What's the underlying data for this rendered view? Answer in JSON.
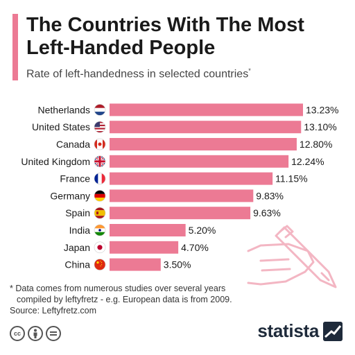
{
  "header": {
    "title": "The Countries With The Most Left-Handed People",
    "subtitle": "Rate of left-handedness in selected countries",
    "subtitle_mark": "*"
  },
  "chart_data": {
    "type": "bar",
    "orientation": "horizontal",
    "title": "The Countries With The Most Left-Handed People",
    "subtitle": "Rate of left-handedness in selected countries*",
    "categories": [
      "Netherlands",
      "United States",
      "Canada",
      "United Kingdom",
      "France",
      "Germany",
      "Spain",
      "India",
      "Japan",
      "China"
    ],
    "values": [
      13.23,
      13.1,
      12.8,
      12.24,
      11.15,
      9.83,
      9.63,
      5.2,
      4.7,
      3.5
    ],
    "labels": [
      "13.23%",
      "13.10%",
      "12.80%",
      "12.24%",
      "11.15%",
      "9.83%",
      "9.63%",
      "5.20%",
      "4.70%",
      "3.50%"
    ],
    "flags": [
      "flag-netherlands-icon",
      "flag-united-states-icon",
      "flag-canada-icon",
      "flag-united-kingdom-icon",
      "flag-france-icon",
      "flag-germany-icon",
      "flag-spain-icon",
      "flag-india-icon",
      "flag-japan-icon",
      "flag-china-icon"
    ],
    "xlim": [
      0,
      13.5
    ],
    "grid": false,
    "legend": "none",
    "bar_color": "#ec7a94"
  },
  "footnote": {
    "line1": "* Data comes from numerous studies over several years",
    "line2": "compiled by leftyfretz - e.g. European data is from 2009.",
    "source": "Source: Leftyfretz.com"
  },
  "license_icons": [
    "cc-icon",
    "by-icon",
    "equals-icon"
  ],
  "brand": {
    "name": "statista"
  },
  "colors": {
    "accent": "#ec7a94",
    "brand": "#1e2a3a",
    "illustration": "#f3b6c3"
  }
}
